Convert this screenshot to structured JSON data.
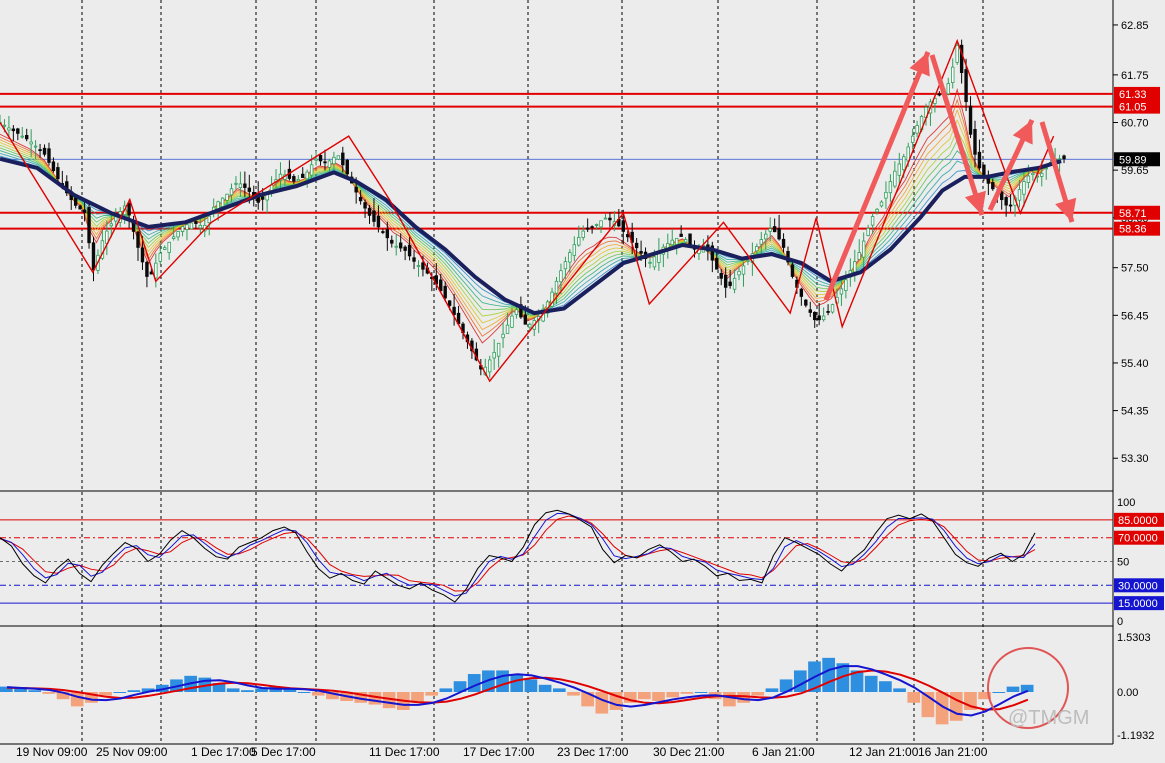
{
  "chart_data": [
    {
      "type": "candlestick",
      "panel": "price",
      "ylim": [
        52.6,
        63.4
      ],
      "y_ticks": [
        "62.85",
        "61.75",
        "60.70",
        "59.65",
        "58.60",
        "57.50",
        "56.45",
        "55.40",
        "54.35",
        "53.30"
      ],
      "horizontal_levels": [
        {
          "label": "61.33",
          "value": 61.33,
          "color": "#e00000"
        },
        {
          "label": "61.05",
          "value": 61.05,
          "color": "#e00000"
        },
        {
          "label": "58.71",
          "value": 58.71,
          "color": "#e00000"
        },
        {
          "label": "58.36",
          "value": 58.36,
          "color": "#e00000"
        }
      ],
      "current_price": {
        "label": "59.89",
        "value": 59.89
      },
      "price_path": [
        [
          0,
          60.7
        ],
        [
          4,
          60.5
        ],
        [
          8,
          60.3
        ],
        [
          12,
          60.0
        ],
        [
          16,
          59.4
        ],
        [
          20,
          58.9
        ],
        [
          23,
          58.7
        ],
        [
          25,
          57.4
        ],
        [
          28,
          58.2
        ],
        [
          31,
          58.6
        ],
        [
          34,
          58.9
        ],
        [
          37,
          58.0
        ],
        [
          40,
          57.2
        ],
        [
          43,
          57.8
        ],
        [
          46,
          58.1
        ],
        [
          49,
          58.4
        ],
        [
          52,
          58.5
        ],
        [
          55,
          58.4
        ],
        [
          58,
          58.9
        ],
        [
          61,
          59.1
        ],
        [
          64,
          59.4
        ],
        [
          67,
          59.2
        ],
        [
          70,
          58.9
        ],
        [
          73,
          59.3
        ],
        [
          76,
          59.6
        ],
        [
          79,
          59.4
        ],
        [
          82,
          59.5
        ],
        [
          85,
          59.9
        ],
        [
          88,
          59.8
        ],
        [
          91,
          60.0
        ],
        [
          94,
          59.5
        ],
        [
          97,
          59.0
        ],
        [
          100,
          58.6
        ],
        [
          103,
          58.3
        ],
        [
          106,
          58.0
        ],
        [
          109,
          57.9
        ],
        [
          112,
          57.6
        ],
        [
          115,
          57.4
        ],
        [
          118,
          57.1
        ],
        [
          121,
          56.7
        ],
        [
          124,
          56.2
        ],
        [
          127,
          55.7
        ],
        [
          130,
          55.2
        ],
        [
          133,
          55.6
        ],
        [
          136,
          56.1
        ],
        [
          139,
          56.6
        ],
        [
          142,
          56.2
        ],
        [
          145,
          56.4
        ],
        [
          148,
          56.8
        ],
        [
          151,
          57.4
        ],
        [
          154,
          57.9
        ],
        [
          157,
          58.3
        ],
        [
          160,
          58.4
        ],
        [
          163,
          58.6
        ],
        [
          166,
          58.5
        ],
        [
          169,
          58.2
        ],
        [
          172,
          57.9
        ],
        [
          175,
          57.6
        ],
        [
          178,
          57.9
        ],
        [
          181,
          58.1
        ],
        [
          184,
          58.2
        ],
        [
          187,
          57.9
        ],
        [
          190,
          58.0
        ],
        [
          193,
          57.5
        ],
        [
          196,
          57.0
        ],
        [
          199,
          57.4
        ],
        [
          202,
          57.7
        ],
        [
          205,
          58.1
        ],
        [
          208,
          58.4
        ],
        [
          211,
          58.0
        ],
        [
          214,
          57.2
        ],
        [
          217,
          56.7
        ],
        [
          220,
          56.3
        ],
        [
          223,
          56.5
        ],
        [
          226,
          56.9
        ],
        [
          229,
          57.4
        ],
        [
          232,
          57.9
        ],
        [
          235,
          58.6
        ],
        [
          238,
          59.0
        ],
        [
          241,
          59.6
        ],
        [
          244,
          60.0
        ],
        [
          247,
          60.6
        ],
        [
          250,
          61.1
        ],
        [
          253,
          61.3
        ],
        [
          256,
          61.6
        ],
        [
          258,
          62.4
        ],
        [
          260,
          61.4
        ],
        [
          262,
          60.2
        ],
        [
          264,
          59.7
        ],
        [
          266,
          59.4
        ],
        [
          268,
          59.2
        ],
        [
          270,
          59.0
        ],
        [
          272,
          58.8
        ],
        [
          274,
          59.1
        ],
        [
          276,
          59.4
        ],
        [
          278,
          59.6
        ],
        [
          280,
          59.5
        ],
        [
          282,
          59.7
        ],
        [
          284,
          59.9
        ]
      ],
      "ema_thick_path": [
        [
          0,
          59.9
        ],
        [
          10,
          59.7
        ],
        [
          20,
          59.1
        ],
        [
          30,
          58.7
        ],
        [
          40,
          58.4
        ],
        [
          50,
          58.5
        ],
        [
          60,
          58.8
        ],
        [
          70,
          59.1
        ],
        [
          80,
          59.3
        ],
        [
          90,
          59.6
        ],
        [
          96,
          59.4
        ],
        [
          104,
          59.0
        ],
        [
          112,
          58.4
        ],
        [
          120,
          57.9
        ],
        [
          128,
          57.3
        ],
        [
          136,
          56.8
        ],
        [
          144,
          56.5
        ],
        [
          152,
          56.6
        ],
        [
          160,
          57.1
        ],
        [
          168,
          57.6
        ],
        [
          176,
          57.8
        ],
        [
          184,
          58.0
        ],
        [
          192,
          57.9
        ],
        [
          200,
          57.7
        ],
        [
          208,
          57.8
        ],
        [
          216,
          57.6
        ],
        [
          224,
          57.2
        ],
        [
          232,
          57.4
        ],
        [
          240,
          57.9
        ],
        [
          248,
          58.6
        ],
        [
          254,
          59.2
        ],
        [
          260,
          59.5
        ],
        [
          266,
          59.5
        ],
        [
          272,
          59.6
        ],
        [
          280,
          59.7
        ],
        [
          286,
          59.85
        ]
      ],
      "zigzag": [
        [
          0,
          60.7
        ],
        [
          25,
          57.4
        ],
        [
          35,
          59.0
        ],
        [
          42,
          57.2
        ],
        [
          57,
          58.5
        ],
        [
          94,
          60.4
        ],
        [
          105,
          59.0
        ],
        [
          132,
          55.0
        ],
        [
          168,
          58.7
        ],
        [
          175,
          56.7
        ],
        [
          195,
          58.5
        ],
        [
          213,
          56.5
        ],
        [
          220,
          58.6
        ],
        [
          227,
          56.2
        ],
        [
          258,
          62.5
        ],
        [
          275,
          58.7
        ],
        [
          284,
          60.4
        ]
      ]
    },
    {
      "type": "line",
      "panel": "stochastic",
      "ylim": [
        0,
        100
      ],
      "y_ticks": [
        "100",
        "50",
        "0"
      ],
      "levels": [
        {
          "label": "85.0000",
          "value": 85,
          "color": "#e00000"
        },
        {
          "label": "70.0000",
          "value": 70,
          "color": "#e00000"
        },
        {
          "label": "30.0000",
          "value": 30,
          "color": "#1515d0"
        },
        {
          "label": "15.0000",
          "value": 15,
          "color": "#1515d0"
        }
      ],
      "k_values": [
        70,
        63,
        48,
        38,
        32,
        44,
        52,
        40,
        33,
        47,
        57,
        66,
        61,
        50,
        56,
        68,
        76,
        70,
        61,
        54,
        52,
        62,
        66,
        70,
        76,
        79,
        74,
        58,
        44,
        36,
        40,
        34,
        31,
        42,
        36,
        30,
        27,
        32,
        26,
        22,
        16,
        27,
        44,
        55,
        53,
        50,
        62,
        81,
        91,
        93,
        90,
        85,
        79,
        60,
        49,
        55,
        53,
        60,
        64,
        58,
        50,
        52,
        46,
        38,
        40,
        34,
        35,
        32,
        55,
        70,
        66,
        61,
        56,
        48,
        42,
        52,
        60,
        74,
        86,
        89,
        86,
        90,
        84,
        70,
        56,
        49,
        46,
        53,
        57,
        50,
        56,
        74
      ]
    },
    {
      "type": "bar",
      "panel": "macd",
      "ylim": [
        -1.1932,
        1.5303
      ],
      "y_ticks": [
        "1.5303",
        "0.00",
        "-1.1932"
      ],
      "histogram": [
        0.15,
        0.1,
        0.05,
        -0.05,
        -0.2,
        -0.4,
        -0.3,
        -0.1,
        0.0,
        0.05,
        0.1,
        0.2,
        0.35,
        0.45,
        0.4,
        0.25,
        0.1,
        0.05,
        0.1,
        0.15,
        0.1,
        0.0,
        -0.1,
        -0.2,
        -0.25,
        -0.3,
        -0.35,
        -0.45,
        -0.5,
        -0.3,
        -0.1,
        0.1,
        0.3,
        0.5,
        0.6,
        0.6,
        0.5,
        0.35,
        0.2,
        0.1,
        -0.1,
        -0.4,
        -0.6,
        -0.5,
        -0.3,
        -0.2,
        -0.25,
        -0.15,
        -0.05,
        0.0,
        -0.2,
        -0.4,
        -0.3,
        -0.1,
        0.1,
        0.35,
        0.6,
        0.85,
        0.95,
        0.8,
        0.6,
        0.45,
        0.3,
        0.1,
        -0.3,
        -0.7,
        -0.9,
        -0.8,
        -0.5,
        -0.2,
        0.0,
        0.15,
        0.2
      ]
    }
  ],
  "x_ticks": [
    "19 Nov 09:00",
    "25 Nov 09:00",
    "1 Dec 17:00",
    "5 Dec 17:00",
    "11 Dec 17:00",
    "17 Dec 17:00",
    "23 Dec 17:00",
    "30 Dec 21:00",
    "6 Jan 21:00",
    "12 Jan 21:00",
    "16 Jan 21:00"
  ],
  "watermark": "@TMGM",
  "colors": {
    "bg": "#ececec",
    "up": "#2e9f5a",
    "down": "#0a0a0a",
    "ema": "#1a1f5e",
    "zigzag": "#e00000",
    "arrow": "#f05a5a",
    "hist_pos": "#2e8fe0",
    "hist_neg": "#f4a27c",
    "stoch_k": "#000000",
    "stoch_d": "#1515d0",
    "stoch_signal": "#e00000"
  }
}
